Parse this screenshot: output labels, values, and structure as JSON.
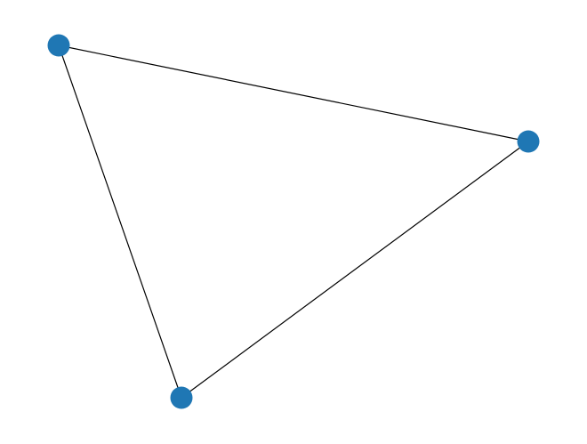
{
  "graph": {
    "node_color": "#1f77b4",
    "edge_color": "#000000",
    "nodes": [
      {
        "id": "n0"
      },
      {
        "id": "n1"
      },
      {
        "id": "n2"
      }
    ],
    "edges": [
      {
        "source": "n0",
        "target": "n1"
      },
      {
        "source": "n1",
        "target": "n2"
      },
      {
        "source": "n2",
        "target": "n0"
      }
    ]
  }
}
